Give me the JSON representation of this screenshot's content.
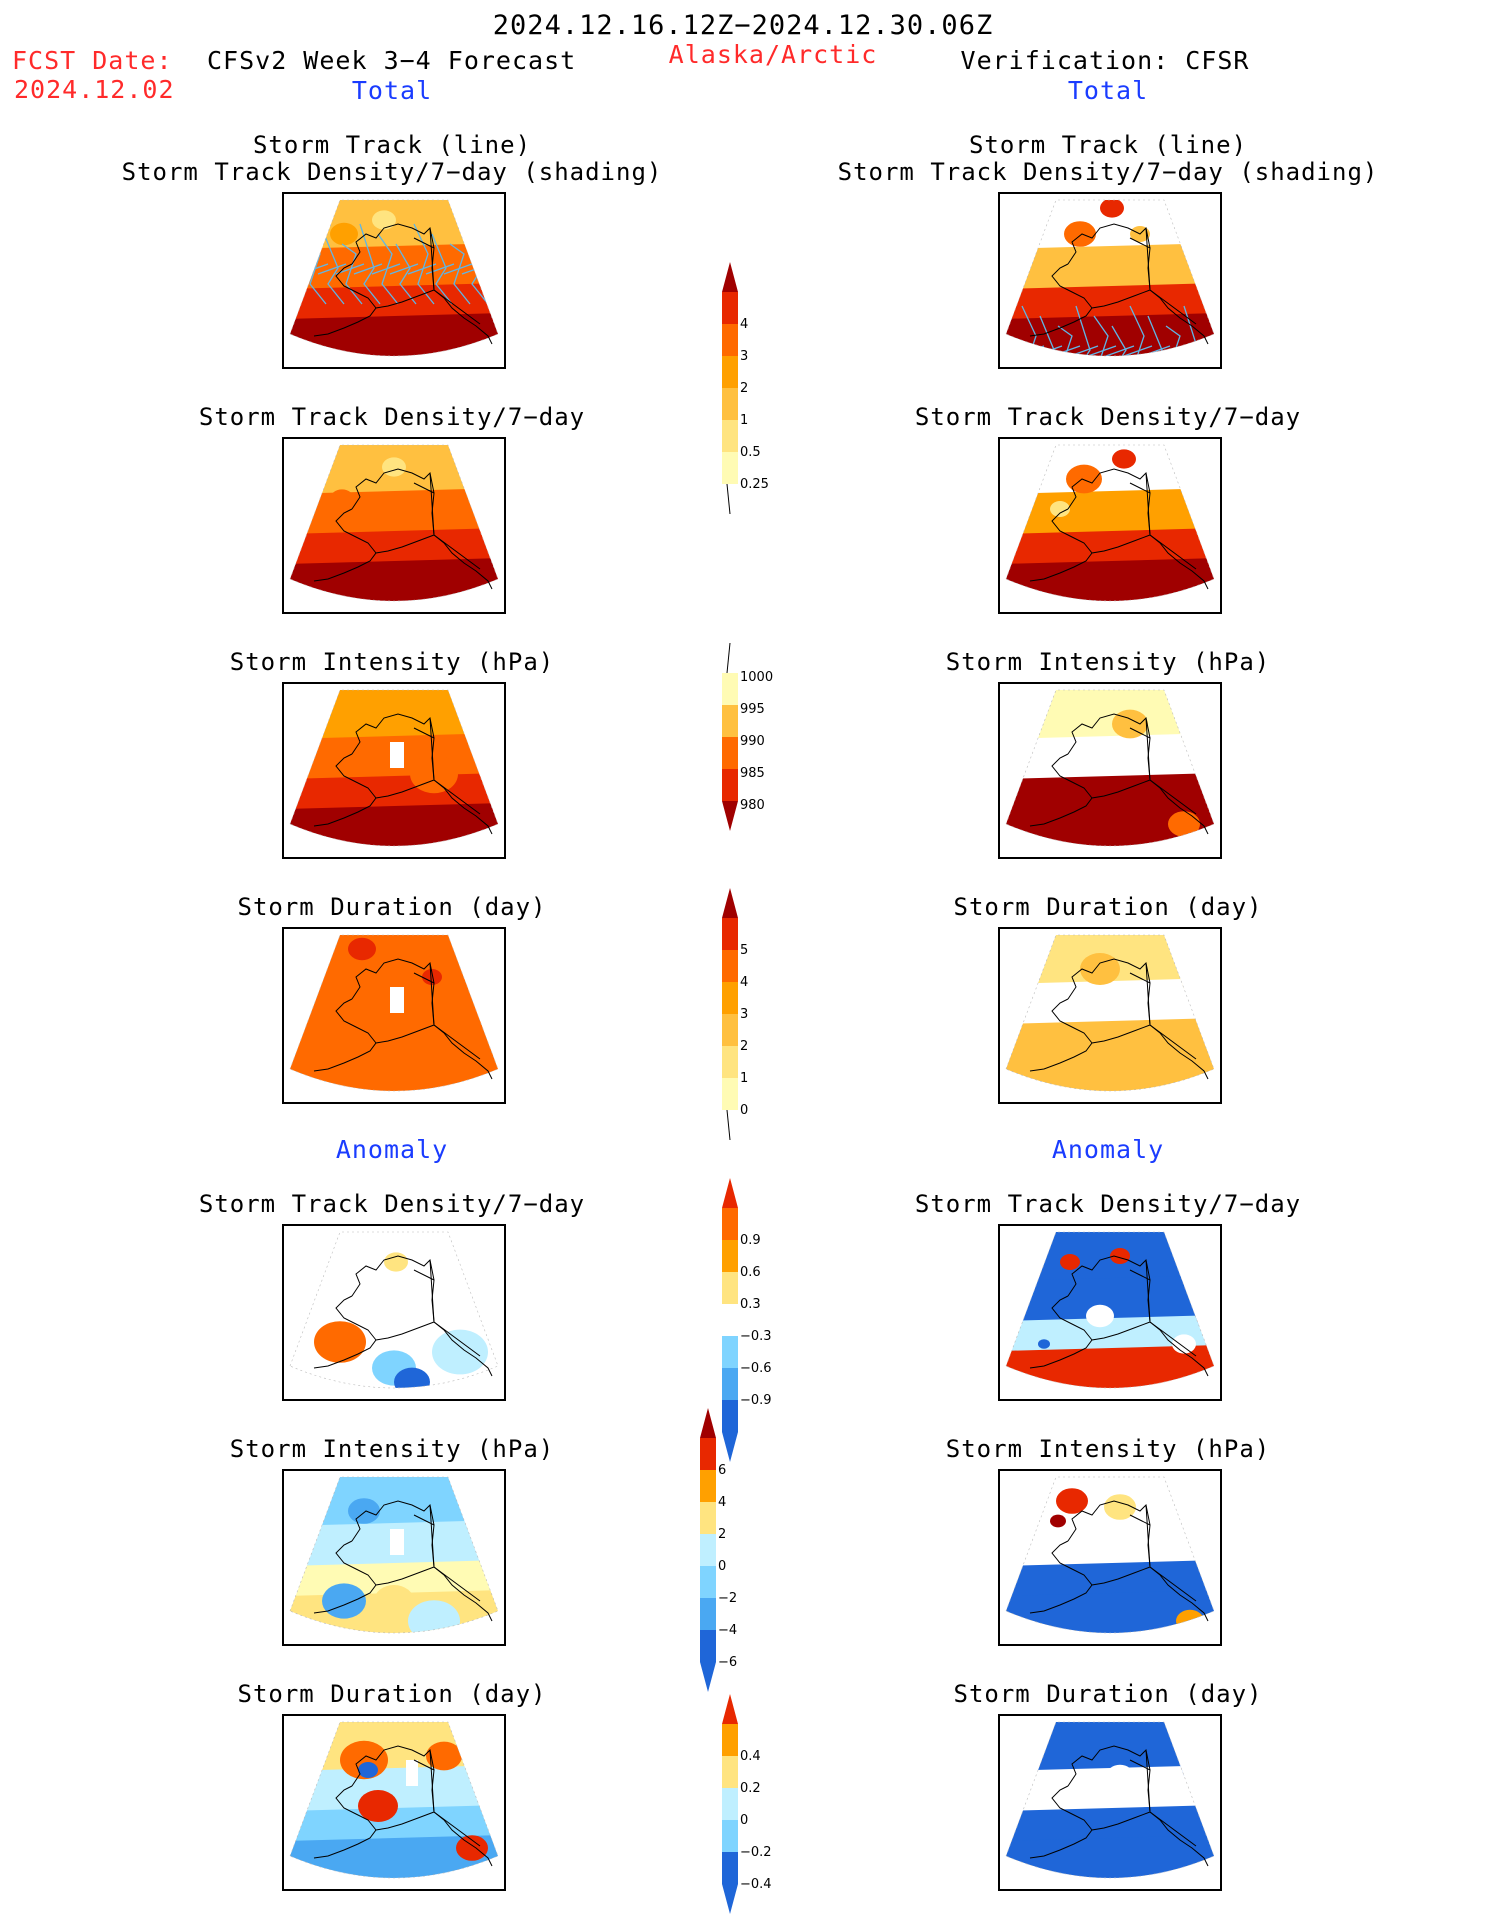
{
  "header": {
    "period": "2024.12.16.12Z−2024.12.30.06Z",
    "fcst_label": "FCST Date:",
    "fcst_date": "2024.12.02",
    "model": "CFSv2 Week 3−4 Forecast",
    "region": "Alaska/Arctic",
    "verification": "Verification: CFSR",
    "left_section": "Total",
    "right_section": "Total",
    "left_anomaly": "Anomaly",
    "right_anomaly": "Anomaly"
  },
  "panel_titles": {
    "track_line": "Storm Track (line)",
    "track_shading": "Storm Track Density/7−day (shading)",
    "density": "Storm Track Density/7−day",
    "intensity": "Storm Intensity (hPa)",
    "duration": "Storm Duration (day)"
  },
  "colorbars": {
    "density_total": [
      "4",
      "3",
      "2",
      "1",
      "0.5",
      "0.25"
    ],
    "intensity_total": [
      "1000",
      "995",
      "990",
      "985",
      "980"
    ],
    "duration_total": [
      "5",
      "4",
      "3",
      "2",
      "1",
      "0"
    ],
    "density_anomaly": [
      "0.9",
      "0.6",
      "0.3",
      "−0.3",
      "−0.6",
      "−0.9"
    ],
    "intensity_anomaly": [
      "6",
      "4",
      "2",
      "0",
      "−2",
      "−4",
      "−6"
    ],
    "duration_anomaly": [
      "0.4",
      "0.2",
      "0",
      "−0.2",
      "−0.4"
    ]
  },
  "colors": {
    "warm": [
      "#fffbb4",
      "#ffe480",
      "#ffc040",
      "#ffa000",
      "#ff6a00",
      "#e82800",
      "#a00000"
    ],
    "cool": [
      "#bfefff",
      "#7fd4ff",
      "#4aa8f2",
      "#1f66d8"
    ],
    "track_line": "#5fb6e6",
    "title_red": "#ff2a2a",
    "title_blue": "#1a3cff"
  }
}
